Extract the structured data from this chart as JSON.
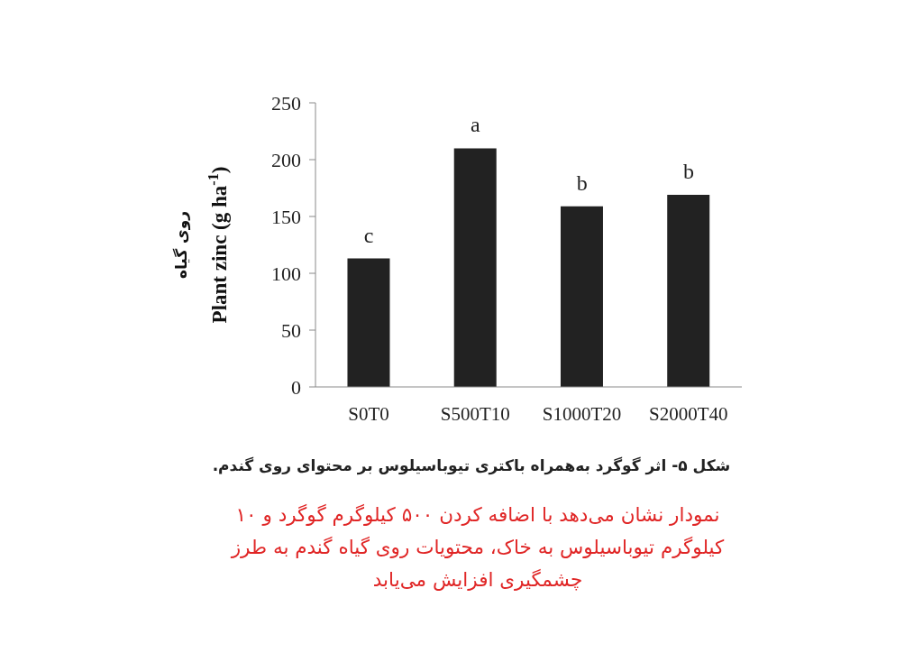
{
  "chart_data": {
    "type": "bar",
    "categories": [
      "S0T0",
      "S500T10",
      "S1000T20",
      "S2000T40"
    ],
    "values": [
      113,
      210,
      159,
      169
    ],
    "color": "#222222",
    "ylabel": "روی گیاه\nPlant zinc (g ha$^{-1}$)",
    "ylim": [
      0,
      250
    ],
    "yticks": [
      0,
      50,
      100,
      150,
      200,
      250
    ],
    "grid": false,
    "legend": false,
    "annotations": [
      {
        "text": "c",
        "x": "S0T0",
        "y": 113
      },
      {
        "text": "a",
        "x": "S500T10",
        "y": 210
      },
      {
        "text": "b",
        "x": "S1000T20",
        "y": 159
      },
      {
        "text": "b",
        "x": "S2000T40",
        "y": 169
      },
      "شکل ۵- اثر گوگرد به‌همراه باکتری تیوباسیلوس بر محتوای روی گندم.",
      "نمودار نشان می‌دهد با اضافه کردن ۵۰۰ کیلوگرم گوگرد و ۱۰ کیلوگرم تیوباسیلوس به خاک، محتویات روی گیاه گندم به طرز چشمگیری افزایش می‌یابد"
    ]
  }
}
